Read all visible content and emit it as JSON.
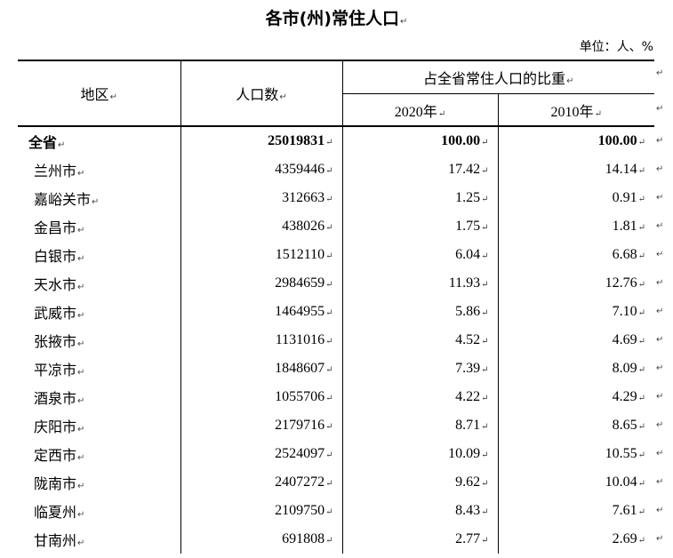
{
  "title": "各市(州)常住人口",
  "unit_label": "单位：人、%",
  "paragraph_mark": "↵",
  "headers": {
    "region": "地区",
    "population": "人口数",
    "share_group": "占全省常住人口的比重",
    "year_2020": "2020年",
    "year_2010": "2010年"
  },
  "rows": [
    {
      "region": "全省",
      "population": "25019831",
      "share_2020": "100.00",
      "share_2010": "100.00",
      "total": true
    },
    {
      "region": "兰州市",
      "population": "4359446",
      "share_2020": "17.42",
      "share_2010": "14.14"
    },
    {
      "region": "嘉峪关市",
      "population": "312663",
      "share_2020": "1.25",
      "share_2010": "0.91"
    },
    {
      "region": "金昌市",
      "population": "438026",
      "share_2020": "1.75",
      "share_2010": "1.81"
    },
    {
      "region": "白银市",
      "population": "1512110",
      "share_2020": "6.04",
      "share_2010": "6.68"
    },
    {
      "region": "天水市",
      "population": "2984659",
      "share_2020": "11.93",
      "share_2010": "12.76"
    },
    {
      "region": "武威市",
      "population": "1464955",
      "share_2020": "5.86",
      "share_2010": "7.10"
    },
    {
      "region": "张掖市",
      "population": "1131016",
      "share_2020": "4.52",
      "share_2010": "4.69"
    },
    {
      "region": "平凉市",
      "population": "1848607",
      "share_2020": "7.39",
      "share_2010": "8.09"
    },
    {
      "region": "酒泉市",
      "population": "1055706",
      "share_2020": "4.22",
      "share_2010": "4.29"
    },
    {
      "region": "庆阳市",
      "population": "2179716",
      "share_2020": "8.71",
      "share_2010": "8.65"
    },
    {
      "region": "定西市",
      "population": "2524097",
      "share_2020": "10.09",
      "share_2010": "10.55"
    },
    {
      "region": "陇南市",
      "population": "2407272",
      "share_2020": "9.62",
      "share_2010": "10.04"
    },
    {
      "region": "临夏州",
      "population": "2109750",
      "share_2020": "8.43",
      "share_2010": "7.61"
    },
    {
      "region": "甘南州",
      "population": "691808",
      "share_2020": "2.77",
      "share_2010": "2.69"
    }
  ]
}
